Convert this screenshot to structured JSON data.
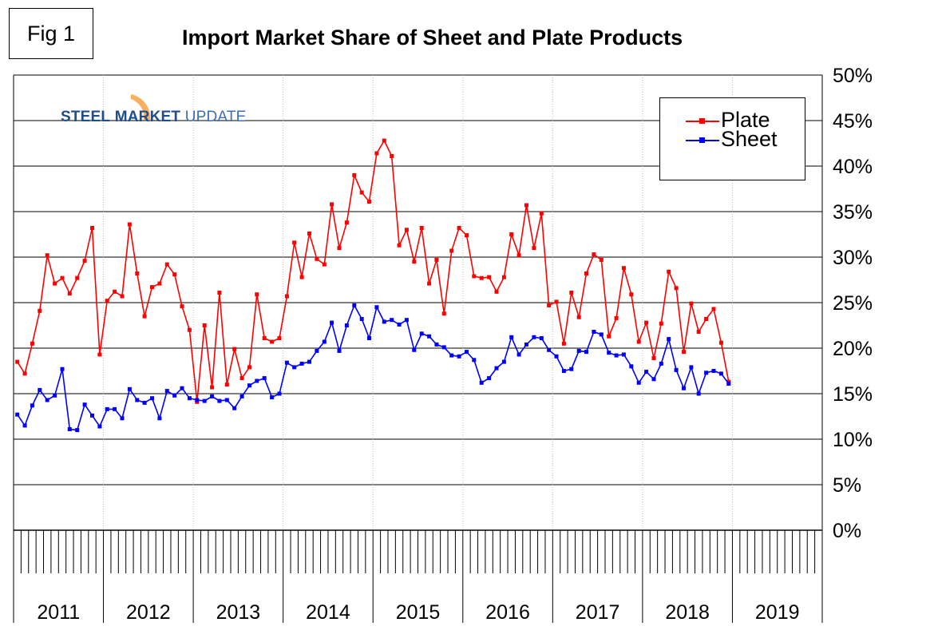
{
  "fig_label": "Fig 1",
  "logo": {
    "word1": "STEEL",
    "word2": "MARKET",
    "word3": "UPDATE"
  },
  "colors": {
    "plate": "#ff0000",
    "sheet": "#0000ff",
    "logo_orange": "#f28c28",
    "logo_blue": "#1f4e8c"
  },
  "chart_data": {
    "type": "line",
    "title": "Import Market Share of Sheet and Plate Products",
    "xlabel": "",
    "ylabel": "",
    "x_start": "2011-01",
    "x_axis_years": [
      "2011",
      "2012",
      "2013",
      "2014",
      "2015",
      "2016",
      "2017",
      "2018",
      "2019"
    ],
    "ylim": [
      0,
      50
    ],
    "y_ticks": [
      "0%",
      "5%",
      "10%",
      "15%",
      "20%",
      "25%",
      "30%",
      "35%",
      "40%",
      "45%",
      "50%"
    ],
    "grid": true,
    "legend_position": "top-right",
    "series": [
      {
        "name": "Plate",
        "color": "#ff0000",
        "values": [
          18.5,
          17.2,
          20.5,
          24.1,
          30.2,
          27.1,
          27.7,
          26.0,
          27.7,
          29.6,
          33.2,
          19.3,
          25.2,
          26.2,
          25.7,
          33.6,
          28.2,
          23.5,
          26.7,
          27.1,
          29.2,
          28.1,
          24.6,
          22.0,
          14.1,
          22.5,
          15.7,
          26.1,
          16.0,
          19.9,
          16.7,
          17.9,
          25.9,
          21.1,
          20.7,
          21.1,
          25.7,
          31.6,
          27.8,
          32.6,
          29.8,
          29.2,
          35.8,
          31.0,
          33.8,
          39.0,
          37.1,
          36.1,
          41.4,
          42.8,
          41.1,
          31.3,
          33.0,
          29.5,
          33.2,
          27.1,
          29.7,
          23.8,
          30.7,
          33.2,
          32.4,
          27.9,
          27.7,
          27.8,
          26.2,
          27.8,
          32.5,
          30.2,
          35.7,
          31.0,
          34.8,
          24.7,
          25.1,
          20.5,
          26.1,
          23.4,
          28.2,
          30.3,
          29.7,
          21.3,
          23.3,
          28.8,
          25.9,
          20.7,
          22.8,
          18.9,
          22.7,
          28.4,
          26.6,
          19.6,
          24.9,
          21.8,
          23.2,
          24.3,
          20.6,
          16.3
        ]
      },
      {
        "name": "Sheet",
        "color": "#0000ff",
        "values": [
          12.7,
          11.5,
          13.7,
          15.4,
          14.3,
          14.8,
          17.7,
          11.1,
          11.0,
          13.8,
          12.6,
          11.4,
          13.3,
          13.3,
          12.3,
          15.5,
          14.3,
          14.0,
          14.5,
          12.3,
          15.3,
          14.8,
          15.6,
          14.5,
          14.3,
          14.2,
          14.7,
          14.2,
          14.3,
          13.4,
          14.7,
          15.9,
          16.4,
          16.7,
          14.6,
          15.0,
          18.4,
          17.9,
          18.3,
          18.5,
          19.7,
          20.7,
          22.8,
          19.7,
          22.5,
          24.7,
          23.2,
          21.1,
          24.5,
          22.9,
          23.1,
          22.6,
          23.1,
          19.8,
          21.6,
          21.3,
          20.4,
          20.1,
          19.2,
          19.1,
          19.6,
          18.7,
          16.2,
          16.7,
          17.8,
          18.5,
          21.2,
          19.3,
          20.4,
          21.2,
          21.1,
          19.8,
          19.1,
          17.5,
          17.7,
          19.7,
          19.6,
          21.8,
          21.5,
          19.5,
          19.2,
          19.3,
          18.0,
          16.2,
          17.4,
          16.6,
          18.3,
          21.0,
          17.6,
          15.6,
          17.9,
          15.0,
          17.3,
          17.5,
          17.2,
          16.1
        ]
      }
    ]
  }
}
